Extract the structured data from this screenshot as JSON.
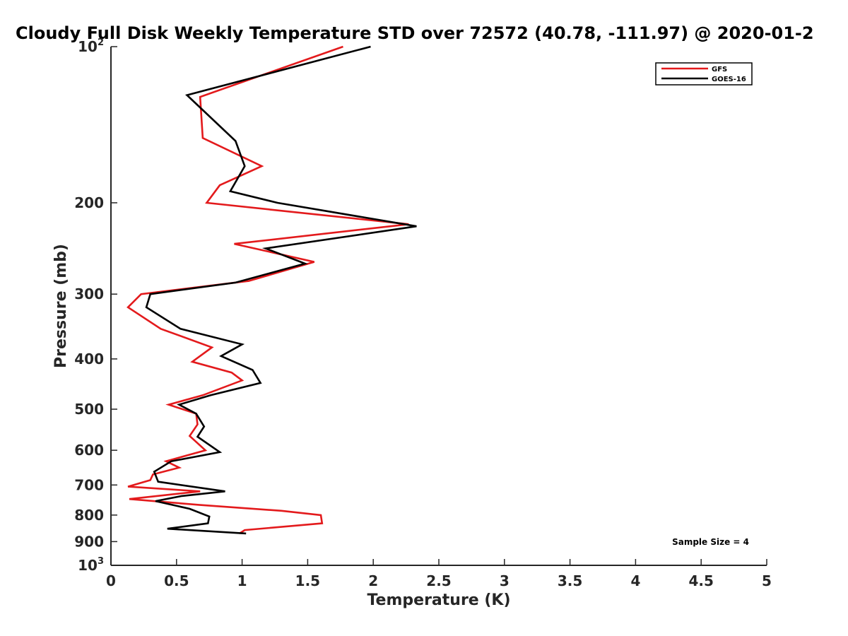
{
  "chart_data": {
    "type": "line",
    "title": "Cloudy Full Disk Weekly Temperature STD over 72572 (40.78, -111.97) @ 2020-01-2",
    "xlabel": "Temperature (K)",
    "ylabel": "Pressure (mb)",
    "xlim": [
      0,
      5
    ],
    "ylim": [
      100,
      1000
    ],
    "yscale": "log",
    "y_reversed": true,
    "x_ticks": [
      "0",
      "0.5",
      "1",
      "1.5",
      "2",
      "2.5",
      "3",
      "3.5",
      "4",
      "4.5",
      "5"
    ],
    "y_ticks": [
      {
        "value": 100,
        "label": "10",
        "sup": "2"
      },
      {
        "value": 200,
        "label": "200",
        "sup": ""
      },
      {
        "value": 300,
        "label": "300",
        "sup": ""
      },
      {
        "value": 400,
        "label": "400",
        "sup": ""
      },
      {
        "value": 500,
        "label": "500",
        "sup": ""
      },
      {
        "value": 600,
        "label": "600",
        "sup": ""
      },
      {
        "value": 700,
        "label": "700",
        "sup": ""
      },
      {
        "value": 800,
        "label": "800",
        "sup": ""
      },
      {
        "value": 900,
        "label": "900",
        "sup": ""
      },
      {
        "value": 1000,
        "label": "10",
        "sup": "3"
      }
    ],
    "legend_position": "top-right",
    "annotation": "Sample Size = 4",
    "series": [
      {
        "name": "GFS",
        "color": "#e31a1c",
        "points": [
          [
            1.77,
            100
          ],
          [
            0.68,
            125
          ],
          [
            0.7,
            150
          ],
          [
            1.15,
            170
          ],
          [
            0.83,
            185
          ],
          [
            0.73,
            200
          ],
          [
            2.27,
            220
          ],
          [
            0.94,
            240
          ],
          [
            1.55,
            260
          ],
          [
            1.05,
            283
          ],
          [
            0.23,
            300
          ],
          [
            0.13,
            318
          ],
          [
            0.38,
            350
          ],
          [
            0.77,
            380
          ],
          [
            0.62,
            405
          ],
          [
            0.92,
            425
          ],
          [
            1.0,
            440
          ],
          [
            0.7,
            470
          ],
          [
            0.44,
            490
          ],
          [
            0.65,
            510
          ],
          [
            0.66,
            535
          ],
          [
            0.6,
            563
          ],
          [
            0.72,
            600
          ],
          [
            0.42,
            630
          ],
          [
            0.52,
            648
          ],
          [
            0.32,
            668
          ],
          [
            0.3,
            685
          ],
          [
            0.13,
            705
          ],
          [
            0.68,
            720
          ],
          [
            0.14,
            745
          ],
          [
            0.68,
            765
          ],
          [
            1.3,
            785
          ],
          [
            1.6,
            800
          ],
          [
            1.61,
            830
          ],
          [
            1.02,
            855
          ],
          [
            0.98,
            868
          ]
        ]
      },
      {
        "name": "GOES-16",
        "color": "#000000",
        "points": [
          [
            1.98,
            100
          ],
          [
            0.58,
            124
          ],
          [
            0.95,
            152
          ],
          [
            1.02,
            170
          ],
          [
            0.91,
            190
          ],
          [
            1.27,
            200
          ],
          [
            2.33,
            222
          ],
          [
            1.18,
            245
          ],
          [
            1.48,
            262
          ],
          [
            0.95,
            285
          ],
          [
            0.3,
            300
          ],
          [
            0.27,
            318
          ],
          [
            0.53,
            350
          ],
          [
            1.0,
            375
          ],
          [
            0.84,
            395
          ],
          [
            1.08,
            420
          ],
          [
            1.14,
            445
          ],
          [
            0.76,
            470
          ],
          [
            0.52,
            490
          ],
          [
            0.65,
            510
          ],
          [
            0.71,
            540
          ],
          [
            0.66,
            565
          ],
          [
            0.83,
            605
          ],
          [
            0.46,
            630
          ],
          [
            0.33,
            660
          ],
          [
            0.36,
            690
          ],
          [
            0.87,
            720
          ],
          [
            0.54,
            735
          ],
          [
            0.34,
            752
          ],
          [
            0.6,
            778
          ],
          [
            0.75,
            805
          ],
          [
            0.74,
            830
          ],
          [
            0.43,
            850
          ],
          [
            1.03,
            868
          ]
        ]
      }
    ]
  }
}
